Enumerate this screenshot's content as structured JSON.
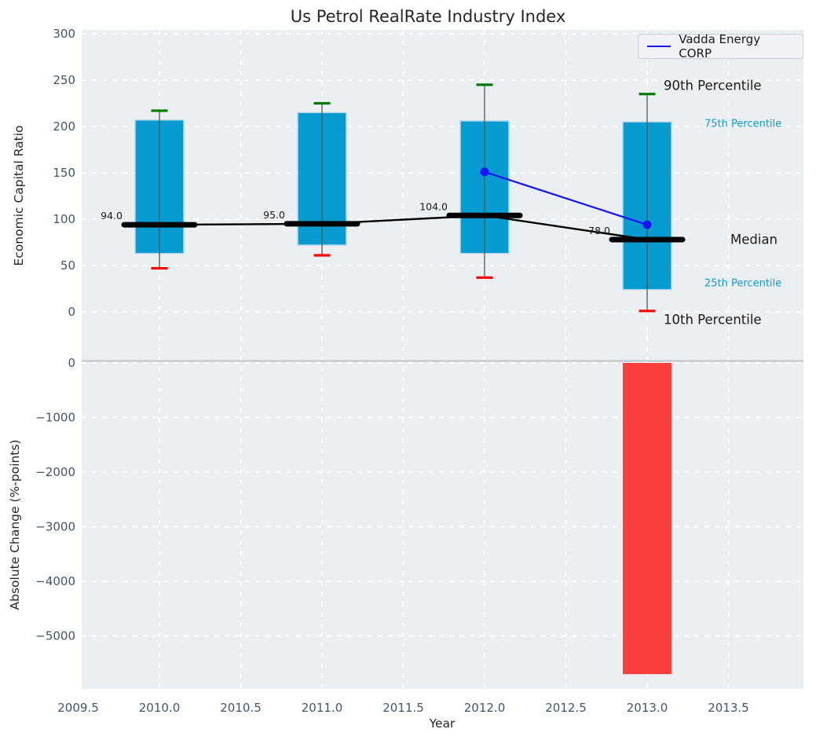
{
  "title": "Us Petrol RealRate Industry Index",
  "axes": {
    "top_ylabel": "Economic Capital Ratio",
    "bottom_ylabel": "Absolute Change (%-points)",
    "xlabel": "Year"
  },
  "legend": {
    "label": "Vadda Energy CORP"
  },
  "annotations": {
    "p90": "90th Percentile",
    "p75": "75th Percentile",
    "median": "Median",
    "p25": "25th Percentile",
    "p10": "10th Percentile"
  },
  "colors": {
    "plot_background": "#eceff1",
    "grid": "#ffffff",
    "bar": "#089bd1",
    "bar_edge": "#b5d9ea",
    "whisker": "#555555",
    "cap_top": "#007a00",
    "cap_bottom": "#ff0000",
    "median_line": "#000000",
    "series_line": "#1414ff",
    "negative_bar": "#fb3e3e",
    "tick_label": "#44546a",
    "annotation_cyan": "#0d9dd3",
    "divider": "#c3c7cb",
    "text": "#262626"
  },
  "chart_data": [
    {
      "type": "box-percentile+line",
      "title": "Us Petrol RealRate Industry Index",
      "xlabel": "Year",
      "ylabel": "Economic Capital Ratio",
      "categories": [
        2010,
        2011,
        2012,
        2013
      ],
      "percentiles": {
        "p90": [
          217,
          225,
          245,
          235
        ],
        "p75": [
          207,
          215,
          206,
          205
        ],
        "median": [
          94,
          95,
          104,
          78
        ],
        "p25": [
          63,
          72,
          63,
          24
        ],
        "p10": [
          47,
          61,
          37,
          1
        ]
      },
      "median_labels": [
        "94.0",
        "95.0",
        "104.0",
        "78.0"
      ],
      "series": [
        {
          "name": "Vadda Energy CORP",
          "x": [
            2012,
            2013
          ],
          "y": [
            151,
            94
          ]
        }
      ],
      "yticks": [
        0,
        50,
        100,
        150,
        200,
        250,
        300
      ],
      "xticks": [
        2009.5,
        2010.0,
        2010.5,
        2011.0,
        2011.5,
        2012.0,
        2012.5,
        2013.0,
        2013.5
      ],
      "ylim": [
        -52,
        304
      ],
      "xlim": [
        2009.52,
        2013.96
      ],
      "grid": true,
      "legend_position": "upper right"
    },
    {
      "type": "bar",
      "ylabel": "Absolute Change (%-points)",
      "categories": [
        2013
      ],
      "values": [
        -5700
      ],
      "yticks": [
        0,
        -1000,
        -2000,
        -3000,
        -4000,
        -5000
      ],
      "ylim": [
        -5980,
        30
      ],
      "grid": true
    }
  ]
}
